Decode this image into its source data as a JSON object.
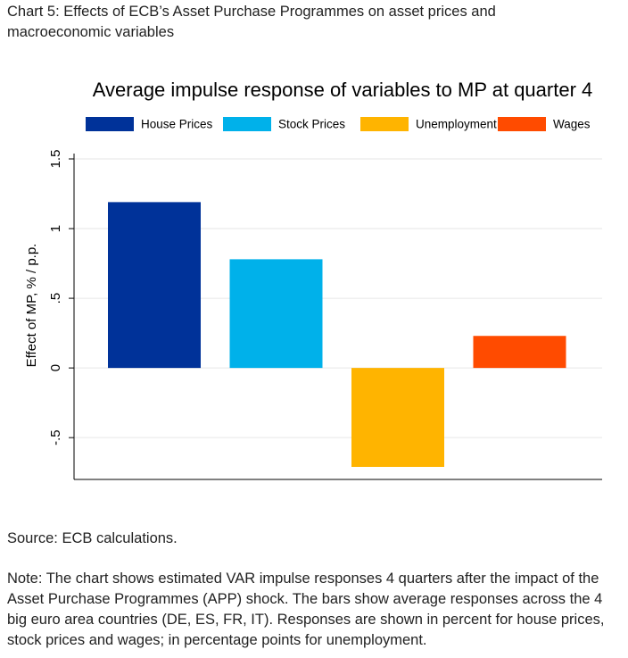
{
  "header": {
    "title": "Chart 5: Effects of ECB’s Asset Purchase Programmes on asset prices and macroeconomic variables"
  },
  "chart_data": {
    "type": "bar",
    "title": "Average impulse response of variables to MP at quarter 4",
    "y_label": "Effect of MP, % / p.p.",
    "series": [
      {
        "name": "House Prices",
        "color": "#003299",
        "values": [
          1.19
        ]
      },
      {
        "name": "Stock Prices",
        "color": "#00b1ea",
        "values": [
          0.78
        ]
      },
      {
        "name": "Unemployment",
        "color": "#ffb400",
        "values": [
          -0.71
        ]
      },
      {
        "name": "Wages",
        "color": "#ff4b00",
        "values": [
          0.23
        ]
      }
    ],
    "ylim": [
      -0.8,
      1.5
    ],
    "yticks": [
      {
        "value": -0.5,
        "label": "-.5"
      },
      0,
      {
        "value": 0.5,
        "label": ".5"
      },
      1,
      1.5
    ],
    "grid": true,
    "legend": "top"
  },
  "footer": {
    "source": "Source: ECB calculations.",
    "note": "Note: The chart shows estimated VAR impulse responses 4 quarters after the impact of the Asset Purchase Programmes (APP) shock. The bars show average responses across the 4 big euro area countries (DE, ES, FR, IT). Responses are shown in percent for house prices, stock prices and wages; in percentage points for unemployment."
  }
}
